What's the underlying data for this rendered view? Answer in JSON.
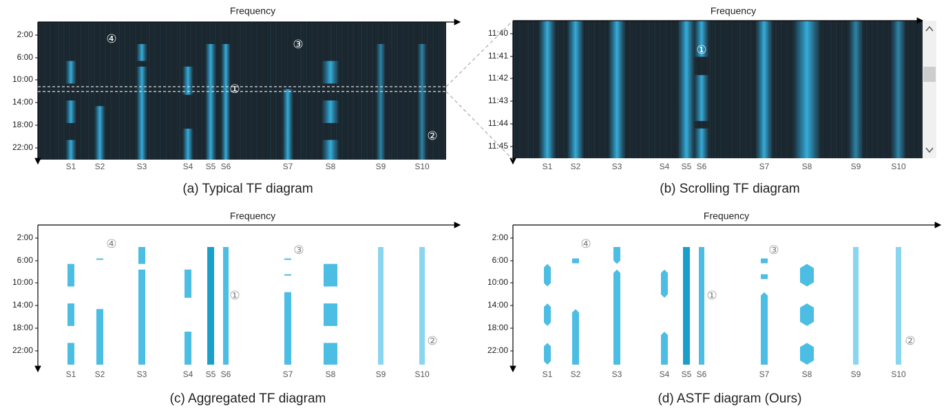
{
  "panels": [
    {
      "title": "(a) Typical TF diagram",
      "axis_label": "Frequency",
      "y_ticks": [
        "2:00",
        "6:00",
        "10:00",
        "14:00",
        "18:00",
        "22:00"
      ],
      "signals": [
        "S1",
        "S2",
        "S3",
        "S4",
        "S5",
        "S6",
        "S7",
        "S8",
        "S9",
        "S10"
      ],
      "annotations": [
        "④",
        "③",
        "①",
        "②"
      ]
    },
    {
      "title": "(b) Scrolling TF diagram",
      "axis_label": "Frequency",
      "y_ticks": [
        "11:40",
        "11:41",
        "11:42",
        "11:43",
        "11:44",
        "11:45"
      ],
      "signals": [
        "S1",
        "S2",
        "S3",
        "S4",
        "S5",
        "S6",
        "S7",
        "S8",
        "S9",
        "S10"
      ],
      "annotations": [
        "①"
      ]
    },
    {
      "title": "(c) Aggregated TF diagram",
      "axis_label": "Frequency",
      "y_ticks": [
        "2:00",
        "6:00",
        "10:00",
        "14:00",
        "18:00",
        "22:00"
      ],
      "signals": [
        "S1",
        "S2",
        "S3",
        "S4",
        "S5",
        "S6",
        "S7",
        "S8",
        "S9",
        "S10"
      ],
      "annotations": [
        "④",
        "③",
        "①",
        "②"
      ]
    },
    {
      "title": "(d) ASTF diagram (Ours)",
      "axis_label": "Frequency",
      "y_ticks": [
        "2:00",
        "6:00",
        "10:00",
        "14:00",
        "18:00",
        "22:00"
      ],
      "signals": [
        "S1",
        "S2",
        "S3",
        "S4",
        "S5",
        "S6",
        "S7",
        "S8",
        "S9",
        "S10"
      ],
      "annotations": [
        "④",
        "③",
        "①",
        "②"
      ]
    }
  ]
}
